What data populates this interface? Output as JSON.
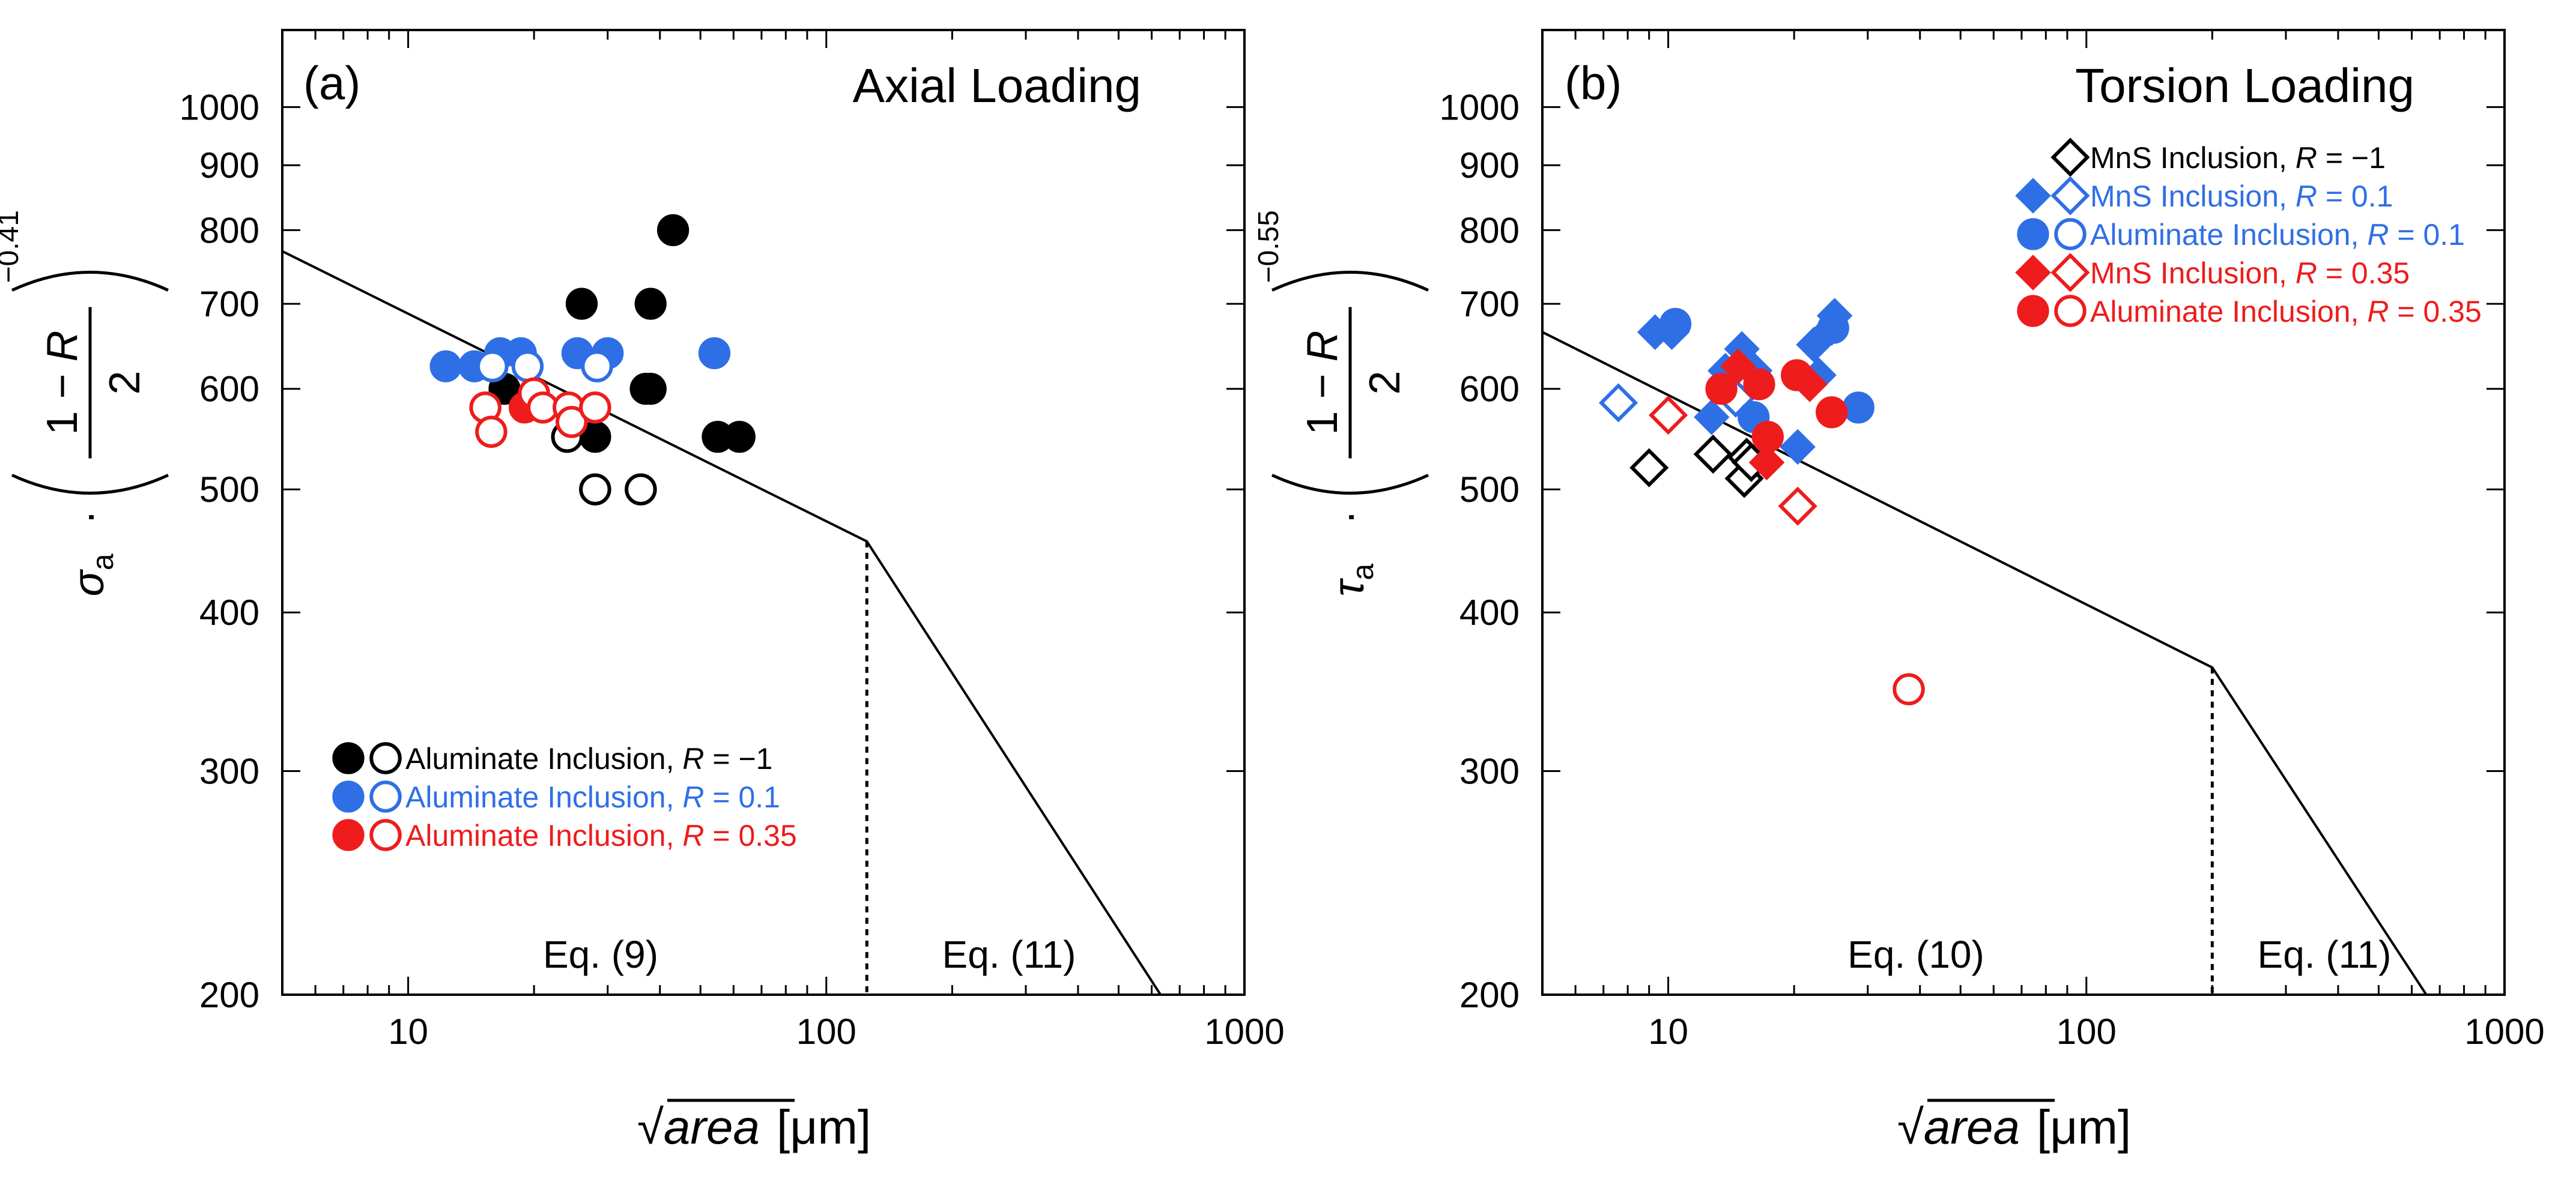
{
  "colors": {
    "black": "#000000",
    "blue": "#2f6fe6",
    "red": "#ee1c1c"
  },
  "chart_data": [
    {
      "type": "scatter",
      "panel": "(a)",
      "title": "Axial Loading",
      "xscale": "log",
      "yscale": "log",
      "xlim": [
        5,
        1000
      ],
      "ylim": [
        200,
        1150
      ],
      "xticks": [
        10,
        100,
        1000
      ],
      "xtick_labels": [
        "10",
        "100",
        "1000"
      ],
      "yticks": [
        200,
        300,
        400,
        500,
        600,
        700,
        800,
        900,
        1000
      ],
      "ytick_labels": [
        "200",
        "300",
        "400",
        "500",
        "600",
        "700",
        "800",
        "900",
        "1000"
      ],
      "xlabel": {
        "root": "√",
        "var": "area",
        "unit": "[μm]"
      },
      "ylabel": {
        "sym": "σ",
        "sub": "a",
        "dot": "·",
        "num": "1 − R",
        "den": "2",
        "exp": "−0.41"
      },
      "curve": [
        [
          5,
          770
        ],
        [
          125,
          455
        ],
        [
          630,
          200
        ]
      ],
      "divider_x": 125,
      "annotations": [
        "Eq. (9)",
        "Eq. (11)"
      ],
      "legend": [
        {
          "label": "Aluminate Inclusion,",
          "r": "R",
          "val": " = −1",
          "color": "black",
          "marker": "circle"
        },
        {
          "label": "Aluminate Inclusion,",
          "r": "R",
          "val": " = 0.1",
          "color": "blue",
          "marker": "circle"
        },
        {
          "label": "Aluminate Inclusion,",
          "r": "R",
          "val": " = 0.35",
          "color": "red",
          "marker": "circle"
        }
      ],
      "series": [
        {
          "name": "Aluminate R=-1 (filled)",
          "color": "black",
          "marker": "circle",
          "filled": true,
          "x": [
            17,
            26,
            28,
            38,
            38,
            37,
            43,
            55,
            62
          ],
          "y": [
            600,
            700,
            550,
            700,
            600,
            600,
            800,
            550,
            550
          ]
        },
        {
          "name": "Aluminate R=-1 (open)",
          "color": "black",
          "marker": "circle",
          "filled": false,
          "x": [
            24,
            28,
            36
          ],
          "y": [
            550,
            500,
            500
          ]
        },
        {
          "name": "Aluminate R=0.1 (filled)",
          "color": "blue",
          "marker": "circle",
          "filled": true,
          "x": [
            12.3,
            14.4,
            16.6,
            18.6,
            25.4,
            30,
            54
          ],
          "y": [
            625,
            625,
            640,
            640,
            640,
            640,
            640
          ]
        },
        {
          "name": "Aluminate R=0.1 (open)",
          "color": "blue",
          "marker": "circle",
          "filled": false,
          "x": [
            15.9,
            19.3,
            28.3
          ],
          "y": [
            625,
            625,
            625
          ]
        },
        {
          "name": "Aluminate R=0.35 (filled)",
          "color": "red",
          "marker": "circle",
          "filled": true,
          "x": [
            19
          ],
          "y": [
            580
          ]
        },
        {
          "name": "Aluminate R=0.35 (open)",
          "color": "red",
          "marker": "circle",
          "filled": false,
          "x": [
            15.3,
            15.8,
            20,
            21,
            24.2,
            24.6,
            28
          ],
          "y": [
            580,
            555,
            595,
            580,
            580,
            565,
            580
          ]
        }
      ]
    },
    {
      "type": "scatter",
      "panel": "(b)",
      "title": "Torsion Loading",
      "xscale": "log",
      "yscale": "log",
      "xlim": [
        5,
        1000
      ],
      "ylim": [
        200,
        1150
      ],
      "xticks": [
        10,
        100,
        1000
      ],
      "xtick_labels": [
        "10",
        "100",
        "1000"
      ],
      "yticks": [
        200,
        300,
        400,
        500,
        600,
        700,
        800,
        900,
        1000
      ],
      "ytick_labels": [
        "200",
        "300",
        "400",
        "500",
        "600",
        "700",
        "800",
        "900",
        "1000"
      ],
      "xlabel": {
        "root": "√",
        "var": "area",
        "unit": "[μm]"
      },
      "ylabel": {
        "sym": "τ",
        "sub": "a",
        "dot": "·",
        "num": "1 − R",
        "den": "2",
        "exp": "−0.55"
      },
      "curve": [
        [
          5,
          665
        ],
        [
          200,
          362
        ],
        [
          650,
          200
        ]
      ],
      "divider_x": 200,
      "annotations": [
        "Eq. (10)",
        "Eq. (11)"
      ],
      "legend": [
        {
          "label": "MnS Inclusion,",
          "r": "R",
          "val": " = −1",
          "color": "black",
          "marker": "diamond",
          "open_only": true
        },
        {
          "label": "MnS Inclusion,",
          "r": "R",
          "val": " = 0.1",
          "color": "blue",
          "marker": "diamond"
        },
        {
          "label": "Aluminate Inclusion,",
          "r": "R",
          "val": " = 0.1",
          "color": "blue",
          "marker": "circle"
        },
        {
          "label": "MnS Inclusion,",
          "r": "R",
          "val": " = 0.35",
          "color": "red",
          "marker": "diamond"
        },
        {
          "label": "Aluminate Inclusion,",
          "r": "R",
          "val": " = 0.35",
          "color": "red",
          "marker": "circle"
        }
      ],
      "series": [
        {
          "name": "MnS R=-1 (open)",
          "color": "black",
          "marker": "diamond",
          "filled": false,
          "x": [
            9,
            12.8,
            15.2,
            15.4,
            15.8
          ],
          "y": [
            520,
            533,
            510,
            530,
            525
          ]
        },
        {
          "name": "MnS R=0.1 (filled)",
          "color": "blue",
          "marker": "diamond",
          "filled": true,
          "x": [
            9.3,
            10.2,
            12.7,
            13.7,
            15,
            15.5,
            16.1,
            20.4,
            22.3,
            22.9,
            24.6,
            25
          ],
          "y": [
            665,
            665,
            570,
            620,
            645,
            625,
            620,
            540,
            650,
            615,
            670,
            685
          ]
        },
        {
          "name": "MnS R=0.1 (open)",
          "color": "blue",
          "marker": "diamond",
          "filled": false,
          "x": [
            7.6,
            14.5
          ],
          "y": [
            585,
            590
          ]
        },
        {
          "name": "Aluminate R=0.1 (filled)",
          "color": "blue",
          "marker": "circle",
          "filled": true,
          "x": [
            10.4,
            16,
            24.8,
            28.5
          ],
          "y": [
            675,
            570,
            670,
            580
          ]
        },
        {
          "name": "MnS R=0.35 (filled)",
          "color": "red",
          "marker": "diamond",
          "filled": true,
          "x": [
            14.7,
            17.2,
            21.8
          ],
          "y": [
            625,
            525,
            605
          ]
        },
        {
          "name": "MnS R=0.35 (open)",
          "color": "red",
          "marker": "diamond",
          "filled": false,
          "x": [
            10,
            20.4
          ],
          "y": [
            572,
            485
          ]
        },
        {
          "name": "Aluminate R=0.35 (filled)",
          "color": "red",
          "marker": "circle",
          "filled": true,
          "x": [
            13.4,
            16.5,
            17.3,
            20.3,
            24.6
          ],
          "y": [
            600,
            605,
            550,
            615,
            575
          ]
        },
        {
          "name": "Aluminate R=0.35 (open)",
          "color": "red",
          "marker": "circle",
          "filled": false,
          "x": [
            37.6
          ],
          "y": [
            348
          ]
        }
      ]
    }
  ]
}
